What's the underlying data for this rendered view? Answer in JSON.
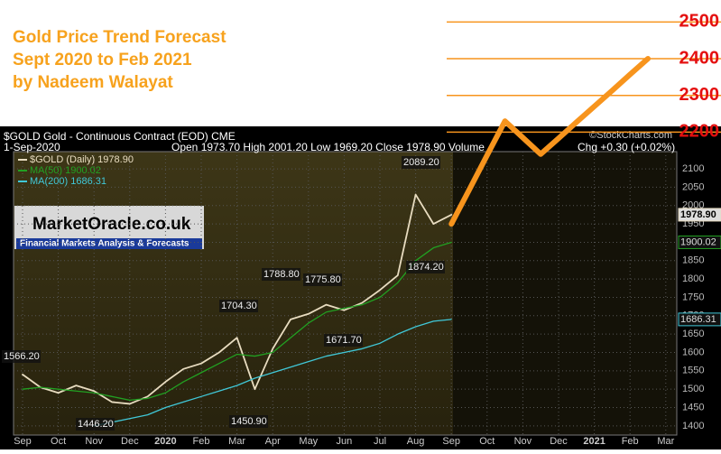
{
  "chart_data": {
    "type": "line",
    "title": [
      "Gold Price Trend Forecast",
      "Sept 2020 to Feb 2021",
      "by Nadeem Walayat"
    ],
    "header": {
      "symbol": "$GOLD Gold - Continuous Contract (EOD) CME",
      "date": "1-Sep-2020",
      "ohlc": "Open 1973.70  High 2001.20  Low 1969.20  Close 1978.90  Volume",
      "change": "Chg +0.30 (+0.02%)",
      "credit": "©StockCharts.com"
    },
    "logo": {
      "name": "MarketOracle.co.uk",
      "tagline": "Financial Markets Analysis & Forecasts"
    },
    "categories": [
      "Sep",
      null,
      "Oct",
      null,
      "Nov",
      null,
      "Dec",
      null,
      "2020",
      null,
      "Feb",
      null,
      "Mar",
      null,
      "Apr",
      null,
      "May",
      null,
      "Jun",
      null,
      "Jul",
      null,
      "Aug",
      null,
      "Sep",
      null,
      "Oct",
      null,
      "Nov",
      null,
      "Dec",
      null,
      "2021",
      null,
      "Feb",
      null,
      "Mar"
    ],
    "series": [
      {
        "name": "$GOLD (Daily) 1978.90",
        "color": "#e8dcc0",
        "tag": "1978.90",
        "values": [
          1540,
          1505,
          1490,
          1510,
          1495,
          1465,
          1460,
          1480,
          1520,
          1555,
          1570,
          1600,
          1640,
          1500,
          1610,
          1690,
          1705,
          1730,
          1715,
          1735,
          1770,
          1810,
          2030,
          1950,
          1975,
          null,
          null,
          null,
          null,
          null,
          null,
          null,
          null,
          null,
          null,
          null,
          null
        ]
      },
      {
        "name": "MA(50) 1900.02",
        "color": "#22a022",
        "tag": "1900.02",
        "values": [
          1500,
          1505,
          1500,
          1495,
          1490,
          1480,
          1470,
          1475,
          1490,
          1520,
          1545,
          1570,
          1595,
          1590,
          1600,
          1640,
          1680,
          1710,
          1720,
          1730,
          1750,
          1790,
          1850,
          1885,
          1900,
          null,
          null,
          null,
          null,
          null,
          null,
          null,
          null,
          null,
          null,
          null,
          null
        ]
      },
      {
        "name": "MA(200) 1686.31",
        "color": "#40c8d8",
        "tag": "1686.31",
        "values": [
          null,
          null,
          null,
          null,
          1400,
          1410,
          1420,
          1430,
          1450,
          1465,
          1480,
          1495,
          1510,
          1530,
          1545,
          1560,
          1575,
          1590,
          1600,
          1610,
          1625,
          1650,
          1670,
          1685,
          1690,
          null,
          null,
          null,
          null,
          null,
          null,
          null,
          null,
          null,
          null,
          null,
          null
        ]
      },
      {
        "name": null,
        "color": "#f7941d",
        "values": [
          null,
          null,
          null,
          null,
          null,
          null,
          null,
          null,
          null,
          null,
          null,
          null,
          null,
          null,
          null,
          null,
          null,
          null,
          null,
          null,
          null,
          null,
          null,
          null,
          1950,
          2043,
          2137,
          2230,
          2185,
          2140,
          2183,
          2227,
          2270,
          2313,
          2357,
          2400,
          null
        ]
      }
    ],
    "annotations": [
      "1566.20",
      "1446.20",
      "1704.30",
      "1450.90",
      "1788.80",
      "1775.80",
      "1671.70",
      "2089.20",
      "1874.20"
    ],
    "ylim": [
      1380,
      2550
    ],
    "yticks": [
      1400,
      1450,
      1500,
      1550,
      1600,
      1650,
      1700,
      1750,
      1800,
      1850,
      1900,
      1950,
      2000,
      2050,
      2100
    ],
    "levels": [
      2200,
      2300,
      2400,
      2500
    ],
    "level_color": "#f7941d",
    "level_label_color": "#e41010",
    "grid": true
  }
}
